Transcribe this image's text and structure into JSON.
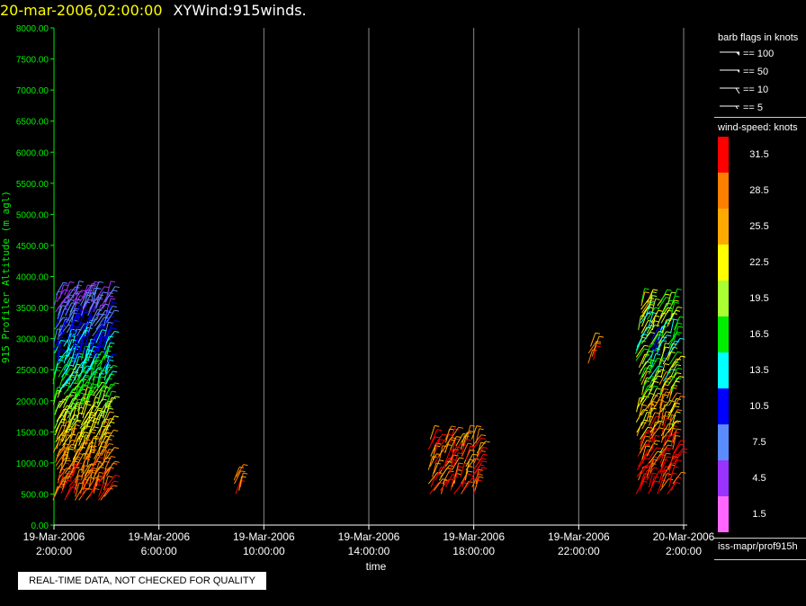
{
  "header": {
    "timestamp": "20-mar-2006,02:00:00",
    "name": "XYWind:915winds."
  },
  "qa_label": "REAL-TIME DATA, NOT CHECKED FOR QUALITY",
  "legend": {
    "flags_title": "barb flags in knots",
    "flags": [
      {
        "label": "== 100",
        "type": "pennant"
      },
      {
        "label": "== 50",
        "type": "pennant-small"
      },
      {
        "label": "== 10",
        "type": "full"
      },
      {
        "label": "== 5",
        "type": "half"
      }
    ],
    "speed_title": "wind-speed: knots",
    "speed_bins": [
      {
        "label": "31.5",
        "color": "#ff0000"
      },
      {
        "label": "28.5",
        "color": "#ff8000"
      },
      {
        "label": "25.5",
        "color": "#ffaa00"
      },
      {
        "label": "22.5",
        "color": "#ffff00"
      },
      {
        "label": "19.5",
        "color": "#aaff33"
      },
      {
        "label": "16.5",
        "color": "#00ee00"
      },
      {
        "label": "13.5",
        "color": "#00ffff"
      },
      {
        "label": "10.5",
        "color": "#0000ff"
      },
      {
        "label": "7.5",
        "color": "#5a8cff"
      },
      {
        "label": "4.5",
        "color": "#9933ff"
      },
      {
        "label": "1.5",
        "color": "#ff66ff"
      }
    ],
    "source": "iss-mapr/prof915h"
  },
  "chart_data": {
    "type": "scatter",
    "ylabel": "915 Profiler Altitude (m agl)",
    "xlabel": "time",
    "ylim": [
      0,
      8000
    ],
    "yticks": [
      "0.00",
      "500.00",
      "1000.00",
      "1500.00",
      "2000.00",
      "2500.00",
      "3000.00",
      "3500.00",
      "4000.00",
      "4500.00",
      "5000.00",
      "5500.00",
      "6000.00",
      "6500.00",
      "7000.00",
      "7500.00",
      "8000.00"
    ],
    "xticks": [
      {
        "date": "19-Mar-2006",
        "time": "2:00:00"
      },
      {
        "date": "19-Mar-2006",
        "time": "6:00:00"
      },
      {
        "date": "19-Mar-2006",
        "time": "10:00:00"
      },
      {
        "date": "19-Mar-2006",
        "time": "14:00:00"
      },
      {
        "date": "19-Mar-2006",
        "time": "18:00:00"
      },
      {
        "date": "19-Mar-2006",
        "time": "22:00:00"
      },
      {
        "date": "20-Mar-2006",
        "time": "2:00:00"
      }
    ],
    "grid": "vertical",
    "series": [
      {
        "x": [
          0.1,
          0.4,
          0.7,
          1.0,
          1.3,
          1.6,
          1.9
        ],
        "x_start": "19-Mar-2006 2:00",
        "alt_range": [
          400,
          3700
        ],
        "speed_profile": "strong-low"
      },
      {
        "x": [
          7.0
        ],
        "x_start": "19-Mar-2006 2:00",
        "alt_range": [
          500,
          800
        ],
        "speed_profile": "strong"
      },
      {
        "x": [
          14.4,
          14.8,
          15.2,
          15.6,
          16.0
        ],
        "x_start": "19-Mar-2006 2:00",
        "alt_range": [
          500,
          1400
        ],
        "speed_profile": "strong"
      },
      {
        "x": [
          20.5
        ],
        "x_start": "19-Mar-2006 2:00",
        "alt_range": [
          2600,
          2900
        ],
        "speed_profile": "strong"
      },
      {
        "x": [
          22.3,
          22.7,
          23.1,
          23.5
        ],
        "x_start": "19-Mar-2006 2:00",
        "alt_range": [
          500,
          3600
        ],
        "speed_profile": "mixed"
      }
    ]
  }
}
